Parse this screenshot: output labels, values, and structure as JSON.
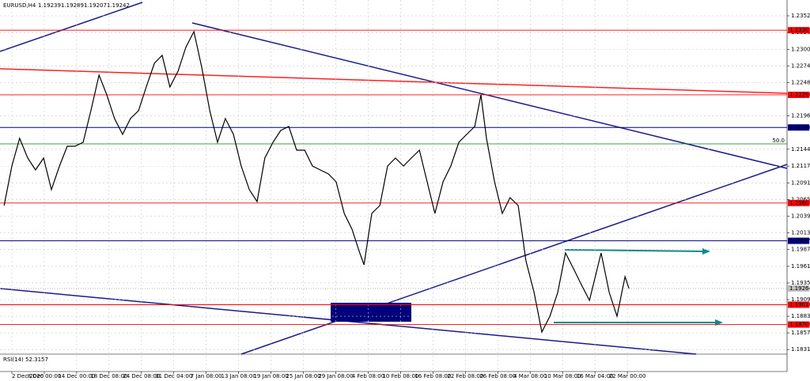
{
  "chart_data": {
    "type": "line",
    "series": [
      {
        "name": "EURUSD,H4",
        "color": "#000000",
        "values": [
          1.2056,
          1.21178,
          1.2161,
          1.21302,
          1.21116,
          1.21302,
          1.20808,
          1.21178,
          1.21487,
          1.21487,
          1.21549,
          1.22043,
          1.22599,
          1.2229,
          1.21919,
          1.21672,
          1.21919,
          1.22043,
          1.22413,
          1.22784,
          1.22907,
          1.22413,
          1.2266,
          1.23031,
          1.23278,
          1.22722,
          1.22043,
          1.21549,
          1.21919,
          1.21672,
          1.21178,
          1.20808,
          1.20622,
          1.21302,
          1.21549,
          1.21734,
          1.21796,
          1.21425,
          1.21425,
          1.21178,
          1.21116,
          1.21055,
          1.20931,
          1.20437,
          1.2019,
          1.19819,
          1.19634,
          1.20437,
          1.2056,
          1.21178,
          1.21302,
          1.21178,
          1.21302,
          1.21425,
          1.20931,
          1.20437,
          1.20931,
          1.21178,
          1.21549,
          1.21672,
          1.21796,
          1.2229,
          1.2161,
          1.20931,
          1.20437,
          1.20684,
          1.2056,
          1.19696,
          1.19202,
          1.18584,
          1.18831,
          1.19202,
          1.19819,
          1.19572,
          1.19325,
          1.19078,
          1.19572,
          1.19819,
          1.19202,
          1.18831,
          1.19449,
          1.19264
        ]
      }
    ],
    "x": [
      -0.24,
      0,
      0.24,
      0.49,
      0.73,
      0.98,
      1.22,
      1.47,
      1.71,
      1.95,
      2.2,
      2.44,
      2.69,
      2.93,
      3.17,
      3.42,
      3.66,
      3.91,
      4.15,
      4.4,
      4.64,
      4.88,
      5.13,
      5.37,
      5.62,
      5.86,
      6.11,
      6.35,
      6.59,
      6.84,
      7.08,
      7.33,
      7.57,
      7.81,
      8.06,
      8.3,
      8.55,
      8.79,
      9.04,
      9.28,
      9.52,
      9.77,
      10.01,
      10.26,
      10.5,
      10.74,
      10.87,
      11.11,
      11.36,
      11.6,
      11.84,
      12.09,
      12.33,
      12.58,
      12.82,
      13.06,
      13.31,
      13.55,
      13.8,
      14.04,
      14.29,
      14.48,
      14.65,
      14.9,
      15.14,
      15.38,
      15.63,
      15.87,
      16.12,
      16.36,
      16.61,
      16.85,
      17.09,
      17.34,
      17.58,
      17.83,
      18.07,
      18.19,
      18.44,
      18.68,
      18.93,
      19.05
    ],
    "ohlc": [
      1.19239,
      1.19289,
      1.19207,
      1.19242
    ],
    "xlim": [
      -0.366,
      23.93
    ],
    "ylim": [
      1.18238,
      1.23772
    ],
    "grid": true,
    "xticks": [
      {
        "value": 0,
        "label": "2 Dec 2020"
      },
      {
        "value": 1,
        "label": "8 Dec 00:00"
      },
      {
        "value": 2,
        "label": "14 Dec 00:00"
      },
      {
        "value": 3,
        "label": "18 Dec 08:00"
      },
      {
        "value": 4,
        "label": "24 Dec 08:00"
      },
      {
        "value": 5,
        "label": "31 Dec 04:00"
      },
      {
        "value": 6,
        "label": "7 Jan 08:00"
      },
      {
        "value": 7,
        "label": "13 Jan 08:00"
      },
      {
        "value": 8,
        "label": "19 Jan 08:00"
      },
      {
        "value": 9,
        "label": "25 Jan 08:00"
      },
      {
        "value": 10,
        "label": "29 Jan 08:00"
      },
      {
        "value": 11,
        "label": "4 Feb 08:00"
      },
      {
        "value": 12,
        "label": "10 Feb 08:00"
      },
      {
        "value": 13,
        "label": "16 Feb 08:00"
      },
      {
        "value": 14,
        "label": "22 Feb 08:00"
      },
      {
        "value": 15,
        "label": "26 Feb 08:00"
      },
      {
        "value": 16,
        "label": "4 Mar 08:00"
      },
      {
        "value": 17,
        "label": "10 Mar 08:00"
      },
      {
        "value": 18,
        "label": "16 Mar 04:00"
      },
      {
        "value": 19,
        "label": "22 Mar 00:00"
      }
    ],
    "yticks": [
      1.23525,
      1.23265,
      {
        "value": 1.23,
        "label": "1.23000"
      },
      {
        "value": 1.2274,
        "label": "1.22740"
      },
      {
        "value": 1.2248,
        "label": "1.22480"
      },
      {
        "value": 1.2196,
        "label": "1.21960"
      },
      {
        "value": 1.2144,
        "label": "1.21440"
      },
      1.21175,
      1.20915,
      1.20655,
      1.20395,
      1.20135,
      1.19875,
      {
        "value": 1.1961,
        "label": "1.19610"
      },
      {
        "value": 1.1935,
        "label": "1.19350"
      },
      {
        "value": 1.1909,
        "label": "1.19090"
      },
      {
        "value": 1.1883,
        "label": "1.18830"
      },
      {
        "value": 1.1857,
        "label": "1.18570"
      },
      {
        "value": 1.1831,
        "label": "1.18310"
      }
    ],
    "levels": [
      {
        "value": 1.233,
        "label": "1.23300",
        "color": "#ff0000"
      },
      {
        "value": 1.2229,
        "label": "1.22290",
        "color": "#ff0000"
      },
      {
        "value": 1.2178,
        "label": "1.21780",
        "color": "#000080"
      },
      {
        "value": 1.206,
        "label": "1.20600",
        "color": "#ff0000"
      },
      {
        "value": 1.20009,
        "label": "1.20009",
        "color": "#000080"
      },
      {
        "value": 1.1901,
        "label": "1.19010",
        "color": "#ff0000"
      },
      {
        "value": 1.187,
        "label": "1.18700",
        "color": "#ff0000"
      }
    ],
    "fib": {
      "value": 1.21524,
      "label": "50.0",
      "color": "#008000"
    },
    "rsi": {
      "label": "RSI(14)",
      "value": 52.3157
    }
  }
}
